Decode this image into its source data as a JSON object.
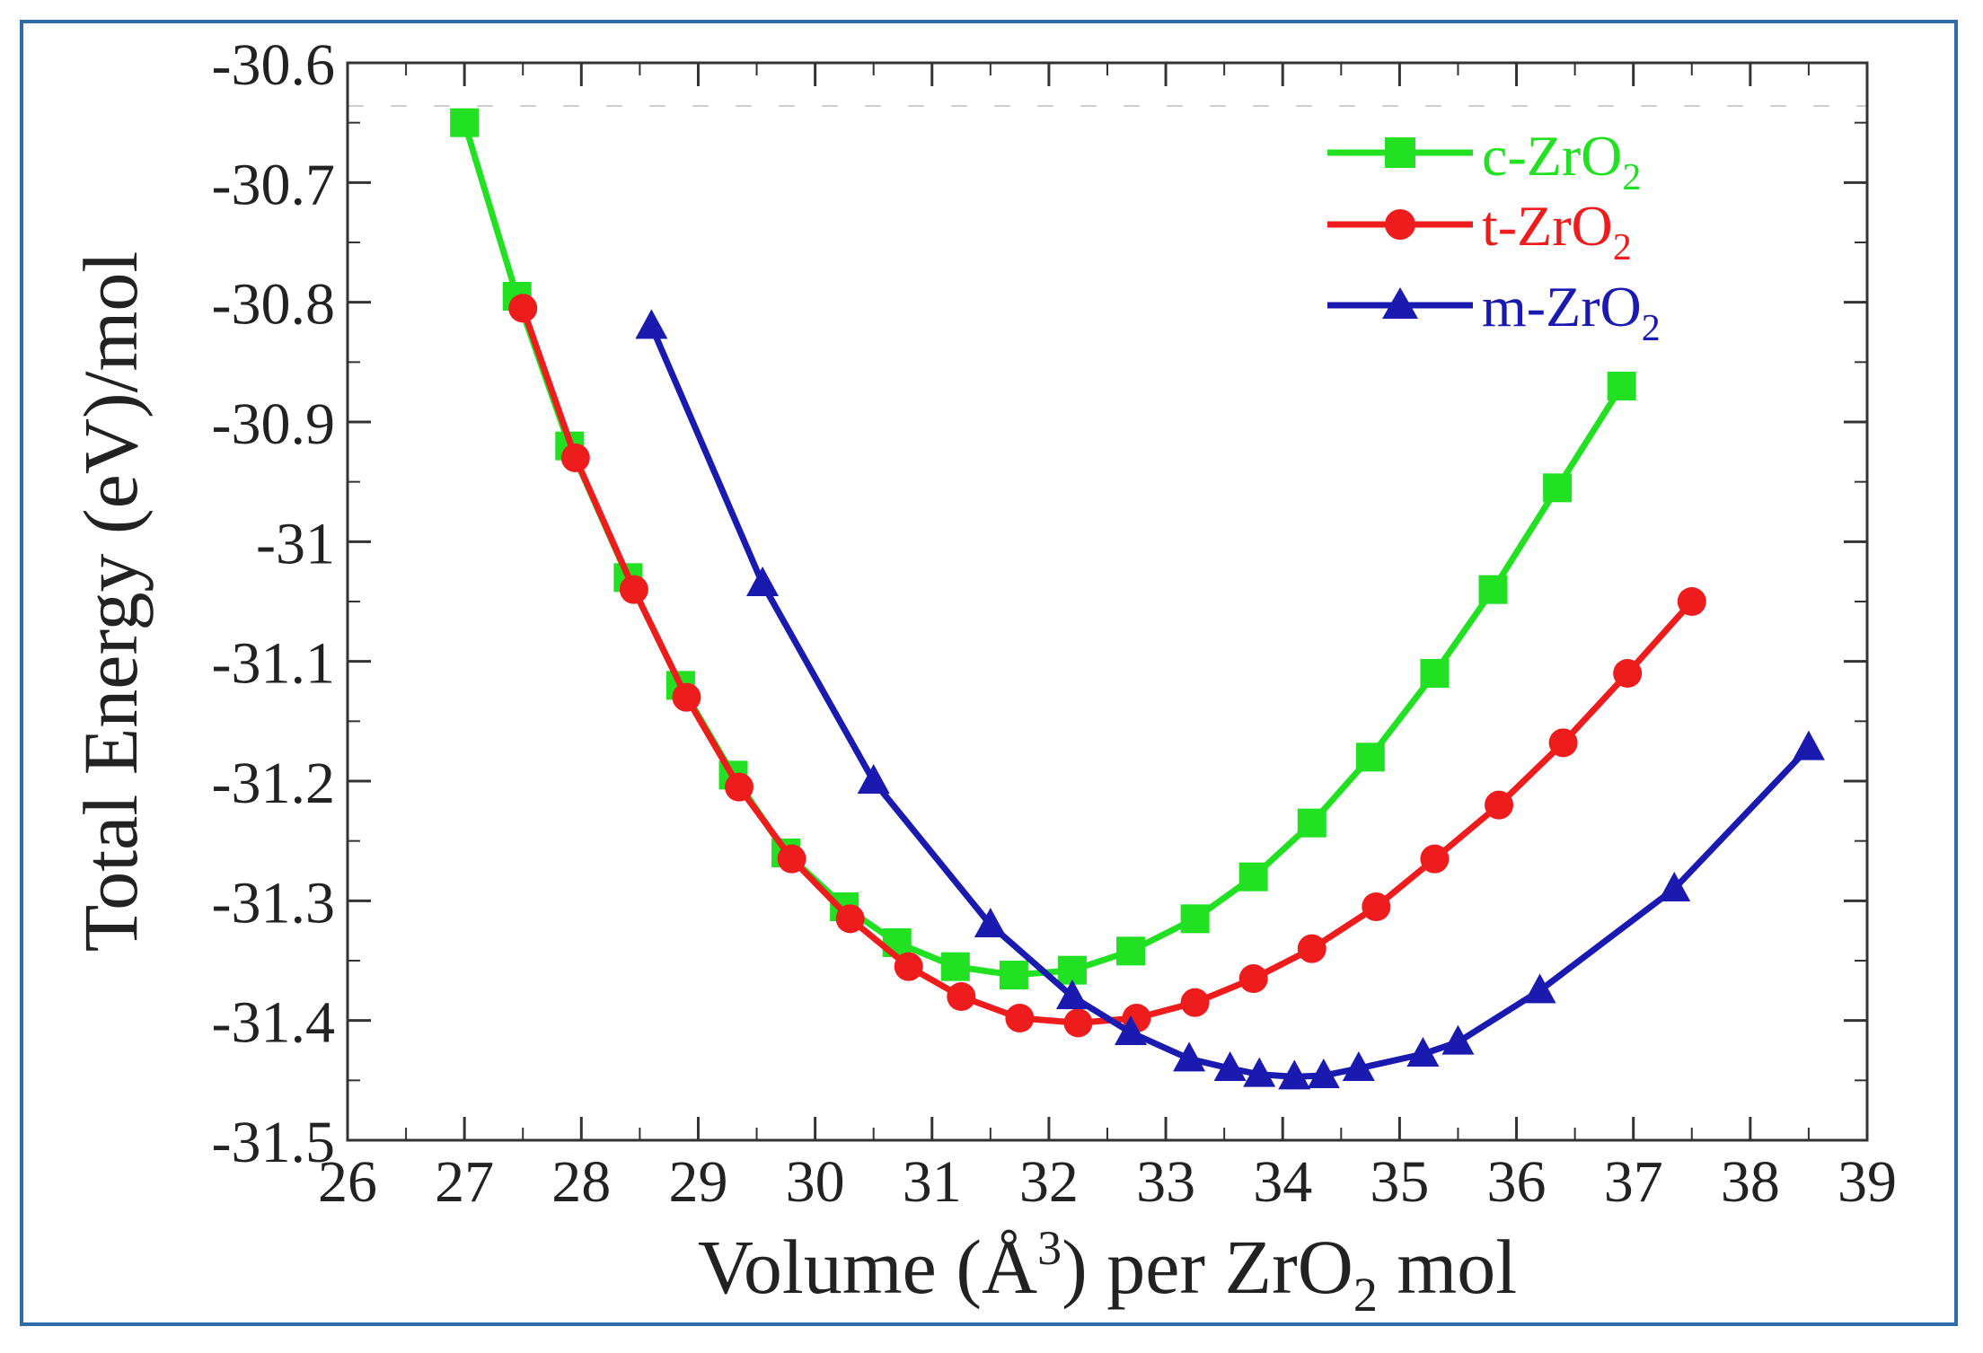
{
  "chart_data": {
    "type": "line",
    "title": "",
    "xlabel_parts": [
      "Volume (Å",
      "3",
      ") per ZrO",
      "2",
      " mol"
    ],
    "ylabel": "Total Energy (eV)/mol",
    "xlim": [
      26,
      39
    ],
    "ylim": [
      -31.5,
      -30.6
    ],
    "xticks": [
      26,
      27,
      28,
      29,
      30,
      31,
      32,
      33,
      34,
      35,
      36,
      37,
      38,
      39
    ],
    "yticks": [
      -30.6,
      -30.7,
      -30.8,
      -30.9,
      -31,
      -31.1,
      -31.2,
      -31.3,
      -31.4,
      -31.5
    ],
    "ytick_labels": [
      "-30.6",
      "-30.7",
      "-30.8",
      "-30.9",
      "-31",
      "-31.1",
      "-31.2",
      "-31.3",
      "-31.4",
      "-31.5"
    ],
    "legend_position": "top-right",
    "series": [
      {
        "name": "c-ZrO2",
        "label_main": "c-ZrO",
        "label_sub": "2",
        "color": "#22e022",
        "marker": "square",
        "x": [
          27.0,
          27.45,
          27.9,
          28.4,
          28.85,
          29.3,
          29.75,
          30.25,
          30.7,
          31.2,
          31.7,
          32.2,
          32.7,
          33.25,
          33.75,
          34.25,
          34.75,
          35.3,
          35.8,
          36.35,
          36.9
        ],
        "y": [
          -30.65,
          -30.795,
          -30.92,
          -31.03,
          -31.12,
          -31.195,
          -31.26,
          -31.305,
          -31.335,
          -31.355,
          -31.362,
          -31.358,
          -31.342,
          -31.315,
          -31.28,
          -31.235,
          -31.18,
          -31.11,
          -31.04,
          -30.955,
          -30.87
        ]
      },
      {
        "name": "t-ZrO2",
        "label_main": "t-ZrO",
        "label_sub": "2",
        "color": "#ee1c1c",
        "marker": "circle",
        "x": [
          27.5,
          27.95,
          28.45,
          28.9,
          29.35,
          29.8,
          30.3,
          30.8,
          31.25,
          31.75,
          32.25,
          32.75,
          33.25,
          33.75,
          34.25,
          34.8,
          35.3,
          35.85,
          36.4,
          36.95,
          37.5
        ],
        "y": [
          -30.805,
          -30.93,
          -31.04,
          -31.13,
          -31.205,
          -31.265,
          -31.315,
          -31.355,
          -31.38,
          -31.398,
          -31.402,
          -31.398,
          -31.385,
          -31.365,
          -31.34,
          -31.305,
          -31.265,
          -31.22,
          -31.168,
          -31.11,
          -31.05
        ]
      },
      {
        "name": "m-ZrO2",
        "label_main": "m-ZrO",
        "label_sub": "2",
        "color": "#1a1ab0",
        "marker": "triangle",
        "x": [
          28.6,
          29.55,
          30.5,
          31.5,
          32.2,
          32.7,
          33.2,
          33.55,
          33.8,
          34.1,
          34.35,
          34.65,
          35.2,
          35.5,
          36.2,
          37.35,
          38.5
        ],
        "y": [
          -30.82,
          -31.035,
          -31.2,
          -31.32,
          -31.38,
          -31.41,
          -31.432,
          -31.44,
          -31.445,
          -31.447,
          -31.446,
          -31.44,
          -31.428,
          -31.418,
          -31.375,
          -31.29,
          -31.172
        ]
      }
    ]
  }
}
